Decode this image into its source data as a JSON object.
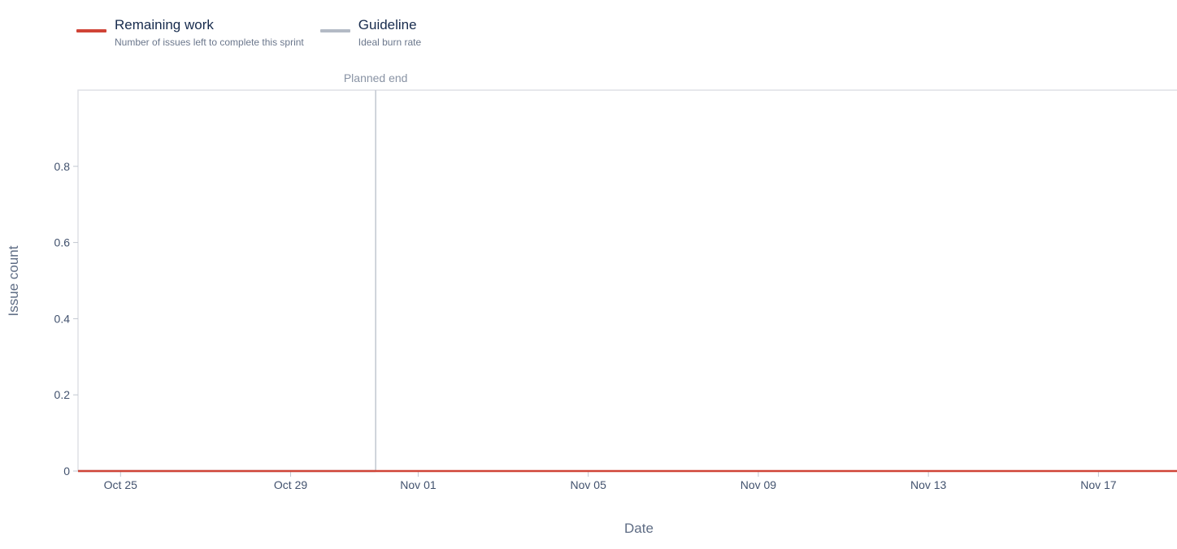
{
  "legend": {
    "remaining": {
      "title": "Remaining work",
      "desc": "Number of issues left to complete this sprint",
      "color": "#d04437"
    },
    "guideline": {
      "title": "Guideline",
      "desc": "Ideal burn rate",
      "color": "#b3bac5"
    }
  },
  "chart_data": {
    "type": "line",
    "xlabel": "Date",
    "ylabel": "Issue count",
    "x_start": "2020-10-24",
    "x_end": "2020-11-19",
    "ylim": [
      0,
      1
    ],
    "x_ticks": [
      {
        "date": "2020-10-25",
        "label": "Oct 25"
      },
      {
        "date": "2020-10-29",
        "label": "Oct 29"
      },
      {
        "date": "2020-11-01",
        "label": "Nov 01"
      },
      {
        "date": "2020-11-05",
        "label": "Nov 05"
      },
      {
        "date": "2020-11-09",
        "label": "Nov 09"
      },
      {
        "date": "2020-11-13",
        "label": "Nov 13"
      },
      {
        "date": "2020-11-17",
        "label": "Nov 17"
      }
    ],
    "y_ticks": [
      {
        "value": 0,
        "label": "0"
      },
      {
        "value": 0.2,
        "label": "0.2"
      },
      {
        "value": 0.4,
        "label": "0.4"
      },
      {
        "value": 0.6,
        "label": "0.6"
      },
      {
        "value": 0.8,
        "label": "0.8"
      }
    ],
    "markers": [
      {
        "date": "2020-10-31",
        "label": "Planned end"
      }
    ],
    "series": [
      {
        "name": "Remaining work",
        "color": "#d04437",
        "points": [
          {
            "x": "2020-10-24",
            "y": 0
          },
          {
            "x": "2020-11-19",
            "y": 0
          }
        ]
      },
      {
        "name": "Guideline",
        "color": "#b3bac5",
        "points": [
          {
            "x": "2020-10-24",
            "y": 0
          },
          {
            "x": "2020-10-31",
            "y": 0
          }
        ]
      }
    ]
  }
}
